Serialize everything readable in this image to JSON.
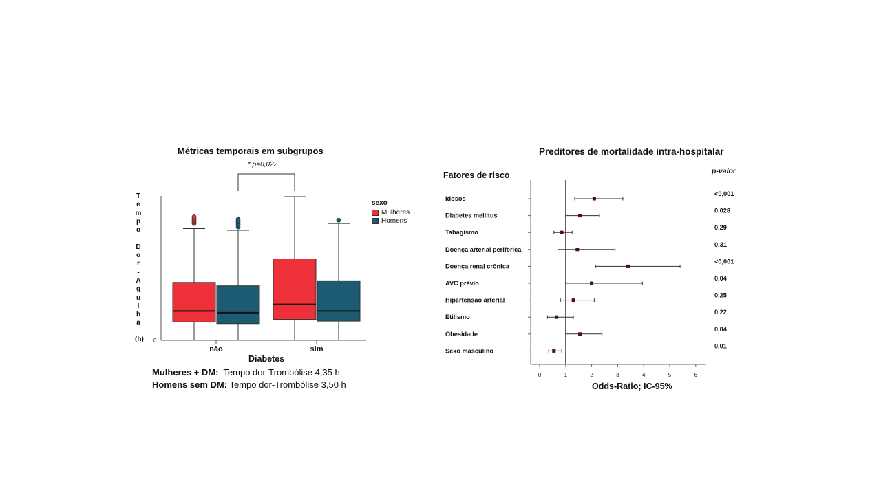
{
  "left": {
    "title": "Métricas temporais em subgrupos",
    "annotation": "* p=0,022",
    "ylabel_letters": [
      "T",
      "e",
      "m",
      "p",
      "o",
      " ",
      "D",
      "o",
      "r",
      "-",
      "A",
      "g",
      "u",
      "l",
      "h",
      "a"
    ],
    "unit": "(h)",
    "zero_tick": "0",
    "xlabel": "Diabetes",
    "legend_title": "sexo",
    "notes": [
      {
        "bold": "Mulheres + DM:",
        "text": "  Tempo dor-Trombólise 4,35 h"
      },
      {
        "bold": "Homens sem DM:",
        "text": " Tempo dor-Trombólise 3,50 h"
      }
    ]
  },
  "right": {
    "title": "Preditores de mortalidade intra-hospitalar",
    "risk_header": "Fatores de risco",
    "pval_header": "p-valor",
    "xlabel": "Odds-Ratio; IC-95%"
  },
  "chart_data": [
    {
      "type": "boxplot",
      "title": "Métricas temporais em subgrupos",
      "xlabel": "Diabetes",
      "ylabel": "Tempo Dor-Agulha (h)",
      "categories": [
        "não",
        "sim"
      ],
      "legend": {
        "title": "sexo",
        "placement": "right"
      },
      "series": [
        {
          "name": "Mulheres",
          "color": "#ee3039",
          "boxes": [
            {
              "min": 0,
              "q1": 1.05,
              "median": 1.7,
              "q3": 3.4,
              "max": 6.6,
              "outliers": [
                6.9,
                7.0,
                7.1,
                7.2,
                7.3
              ]
            },
            {
              "min": 0,
              "q1": 1.2,
              "median": 2.1,
              "q3": 4.8,
              "max": 8.5,
              "outliers": []
            }
          ]
        },
        {
          "name": "Homens",
          "color": "#1d5b73",
          "boxes": [
            {
              "min": 0,
              "q1": 0.95,
              "median": 1.6,
              "q3": 3.2,
              "max": 6.5,
              "outliers": [
                6.7,
                6.85,
                7.0,
                7.15
              ]
            },
            {
              "min": 0,
              "q1": 1.1,
              "median": 1.7,
              "q3": 3.5,
              "max": 6.9,
              "outliers": [
                7.1
              ]
            }
          ]
        }
      ],
      "significance": {
        "between": [
          "Homens não",
          "Mulheres sim"
        ],
        "label": "* p=0,022"
      }
    },
    {
      "type": "forest",
      "title": "Preditores de mortalidade intra-hospitalar",
      "xlabel": "Odds-Ratio; IC-95%",
      "xticks": [
        0,
        1,
        2,
        3,
        4,
        5,
        6
      ],
      "xlim": [
        0,
        6
      ],
      "reference_line": 1,
      "rows": [
        {
          "label": "Idosos",
          "or": 2.1,
          "ci": [
            1.35,
            3.2
          ],
          "p": "<0,001"
        },
        {
          "label": "Diabetes mellitus",
          "or": 1.55,
          "ci": [
            1.0,
            2.3
          ],
          "p": "0,028"
        },
        {
          "label": "Tabagismo",
          "or": 0.85,
          "ci": [
            0.55,
            1.25
          ],
          "p": "0,29"
        },
        {
          "label": "Doença arterial periférica",
          "or": 1.45,
          "ci": [
            0.7,
            2.9
          ],
          "p": "0,31"
        },
        {
          "label": "Doença renal crônica",
          "or": 3.4,
          "ci": [
            2.15,
            5.4
          ],
          "p": "<0,001"
        },
        {
          "label": "AVC prévio",
          "or": 2.0,
          "ci": [
            1.0,
            3.95
          ],
          "p": "0,04"
        },
        {
          "label": "Hipertensão arterial",
          "or": 1.3,
          "ci": [
            0.8,
            2.1
          ],
          "p": "0,25"
        },
        {
          "label": "Etilismo",
          "or": 0.65,
          "ci": [
            0.3,
            1.3
          ],
          "p": "0,22"
        },
        {
          "label": "Obesidade",
          "or": 1.55,
          "ci": [
            1.0,
            2.4
          ],
          "p": "0,04"
        },
        {
          "label": "Sexo masculino",
          "or": 0.55,
          "ci": [
            0.35,
            0.85
          ],
          "p": "0,01"
        }
      ]
    }
  ]
}
